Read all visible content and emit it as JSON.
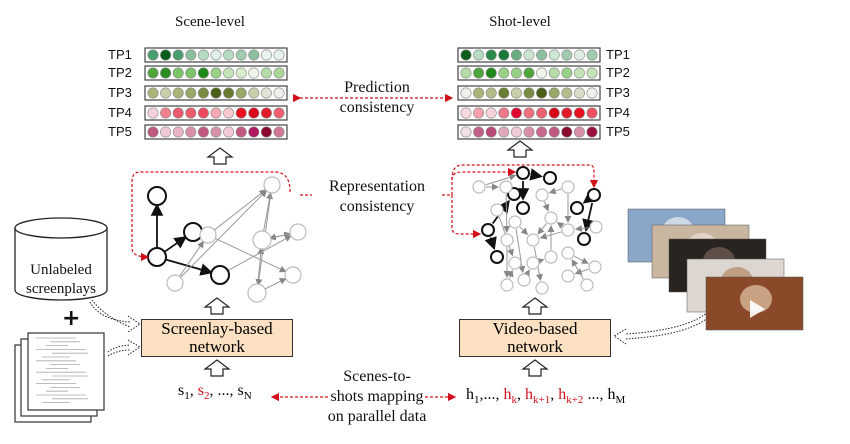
{
  "scene_panel": {
    "title": "Scene-level",
    "rows": [
      {
        "label": "TP1",
        "colors": [
          "#4a9e6e",
          "#0b5d1e",
          "#4a9e6e",
          "#8cc09c",
          "#b6dbc2",
          "#e0eee5",
          "#b6dbc2",
          "#a0cbae",
          "#8cc09c",
          "#e8f2ec",
          "#e8f2ec"
        ]
      },
      {
        "label": "TP2",
        "colors": [
          "#4ea53a",
          "#2a8c1f",
          "#7cc46a",
          "#7cc46a",
          "#1f8a1a",
          "#98d088",
          "#c2e4b6",
          "#d6eccc",
          "#eef6ea",
          "#b4dca6",
          "#a8d898"
        ]
      },
      {
        "label": "TP3",
        "colors": [
          "#a8b478",
          "#c8ceaa",
          "#a8b478",
          "#98a868",
          "#7a8c44",
          "#4a6018",
          "#6a7c30",
          "#98a868",
          "#c8ceaa",
          "#e0e4d4",
          "#eeeeea"
        ]
      },
      {
        "label": "TP4",
        "colors": [
          "#f8d2da",
          "#f0808e",
          "#ec5a6c",
          "#ec5a6c",
          "#ec4860",
          "#f4a8b4",
          "#f8c8d0",
          "#e8101e",
          "#d80818",
          "#e01a2a",
          "#f06070"
        ]
      },
      {
        "label": "TP5",
        "colors": [
          "#c05880",
          "#f0c8d6",
          "#e8b4c6",
          "#d890aa",
          "#c05880",
          "#d890aa",
          "#f0c8d6",
          "#c05880",
          "#b01860",
          "#8a0a30",
          "#d07898"
        ]
      }
    ]
  },
  "shot_panel": {
    "title": "Shot-level",
    "rows": [
      {
        "label": "TP1",
        "colors": [
          "#0b5d1e",
          "#b6dbc2",
          "#2a8a4a",
          "#1a7a3a",
          "#6aae82",
          "#cce6d4",
          "#8cc09c",
          "#cce6d4",
          "#a0cbae",
          "#e0eee5",
          "#a0cbae"
        ]
      },
      {
        "label": "TP2",
        "colors": [
          "#b4dca6",
          "#4ea53a",
          "#1f8a1a",
          "#98d088",
          "#98d088",
          "#4ea53a",
          "#eef6ea",
          "#b4dca6",
          "#98d088",
          "#c2e4b6",
          "#c2e4b6"
        ]
      },
      {
        "label": "TP3",
        "colors": [
          "#eeeeea",
          "#a8b478",
          "#b4bc8c",
          "#6a7c30",
          "#c8ceaa",
          "#7a8c44",
          "#4a6018",
          "#98a868",
          "#b4bc8c",
          "#d8dcc8",
          "#eeeeea"
        ]
      },
      {
        "label": "TP4",
        "colors": [
          "#f8d8de",
          "#f4a0ac",
          "#f8d2da",
          "#ec7888",
          "#e00a30",
          "#f07080",
          "#ec6070",
          "#d80818",
          "#e01a2a",
          "#e8101e",
          "#ec5060"
        ]
      },
      {
        "label": "TP5",
        "colors": [
          "#f0e0e6",
          "#c06088",
          "#b84878",
          "#e0a8bc",
          "#f0c8d6",
          "#d890aa",
          "#c86890",
          "#c05880",
          "#8a0a30",
          "#d890aa",
          "#9a1040"
        ]
      }
    ]
  },
  "prediction_consistency": [
    "Prediction",
    "consistency"
  ],
  "representation_consistency": [
    "Representation",
    "consistency"
  ],
  "screenplay_network": [
    "Screenlay-based",
    "network"
  ],
  "video_network": [
    "Video-based",
    "network"
  ],
  "unlabeled_screenplays": [
    "Unlabeled",
    "screenplays"
  ],
  "plus": "+",
  "mapping": [
    "Scenes-to-",
    "shots mapping",
    "on parallel data"
  ],
  "scene_sequence": [
    {
      "base": "s",
      "sub": "1",
      "sep": ", ",
      "highlight": false
    },
    {
      "base": "s",
      "sub": "2",
      "sep": ", ..., ",
      "highlight": true
    },
    {
      "base": "s",
      "sub": "N",
      "sep": "",
      "highlight": false
    }
  ],
  "shot_sequence": [
    {
      "base": "h",
      "sub": "1",
      "sep": ",..., ",
      "highlight": false
    },
    {
      "base": "h",
      "sub": "k",
      "sep": ", ",
      "highlight": true
    },
    {
      "base": "h",
      "sub": "k+1",
      "sep": ", ",
      "highlight": true
    },
    {
      "base": "h",
      "sub": "k+2",
      "sep": "  ..., ",
      "highlight": true
    },
    {
      "base": "h",
      "sub": "M",
      "sep": "",
      "highlight": false
    }
  ],
  "colors": {
    "consistency_arrow": "#d0101a",
    "network_box": "#fbe0c2",
    "highlight_text": "#d0101a"
  }
}
